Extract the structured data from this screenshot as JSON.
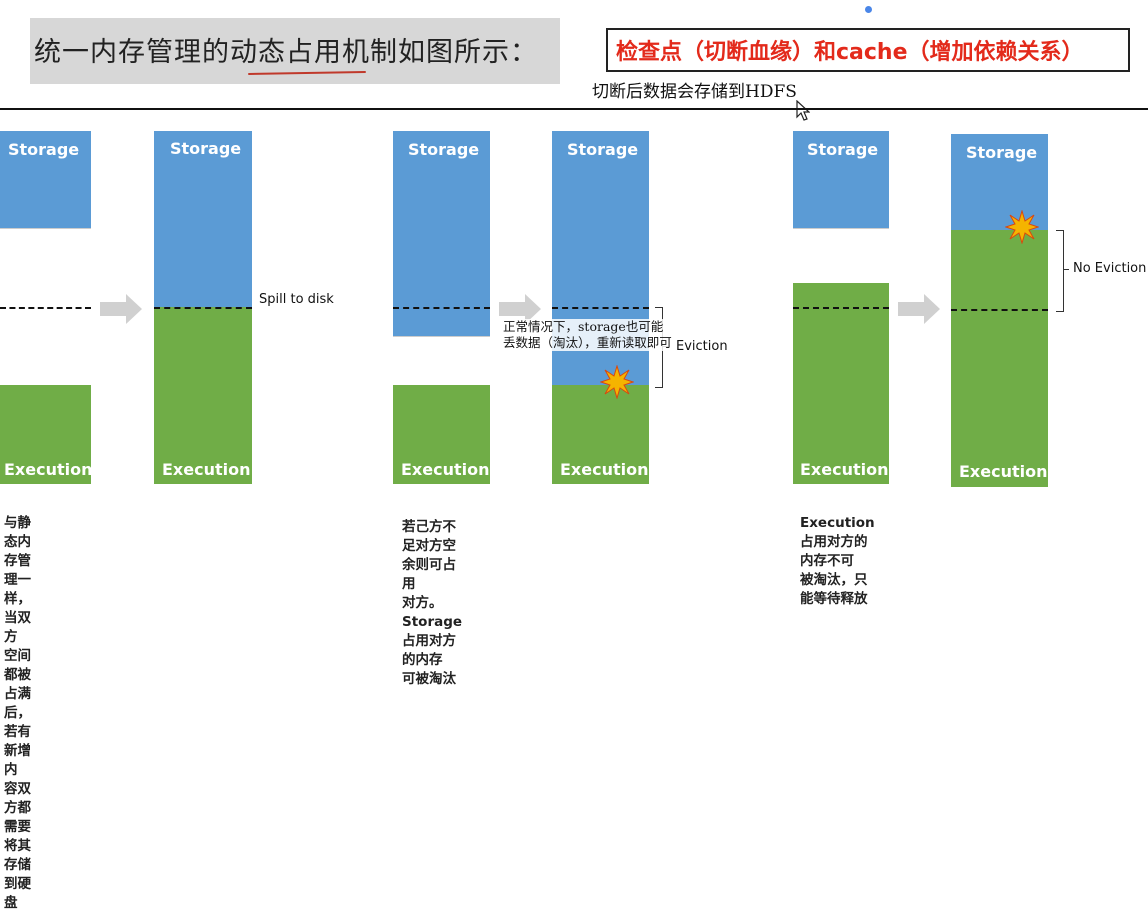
{
  "header": {
    "title": "统一内存管理的动态占用机制如图所示：",
    "red_note": "检查点（切断血缘）和cache（增加依赖关系）",
    "hdfs_note": "切断后数据会存储到HDFS"
  },
  "diagram": {
    "storage_label": "Storage",
    "execution_label": "Execution",
    "spill_label": "Spill to disk",
    "eviction_label": "Eviction",
    "no_eviction_label": "No Eviction",
    "overlay_note_line1": "正常情况下，storage也可能",
    "overlay_note_line2": "丢数据（淘汰），重新读取即可",
    "caption1_line1": "与静态内存管理一样，当双方",
    "caption1_line2": "空间都被占满后，若有新增内",
    "caption1_line3": "容双方都需要将其存储到硬盘",
    "caption2_line1": "若己方不足对方空余则可占用",
    "caption2_line2": "对方。Storage占用对方的内存",
    "caption2_line3": "可被淘汰",
    "caption3_line1": "Execution占用对方的内存不可",
    "caption3_line2": "被淘汰，只能等待释放"
  },
  "colors": {
    "storage": "#5b9bd5",
    "execution": "#70ad47",
    "accent": "#e32a1b"
  }
}
